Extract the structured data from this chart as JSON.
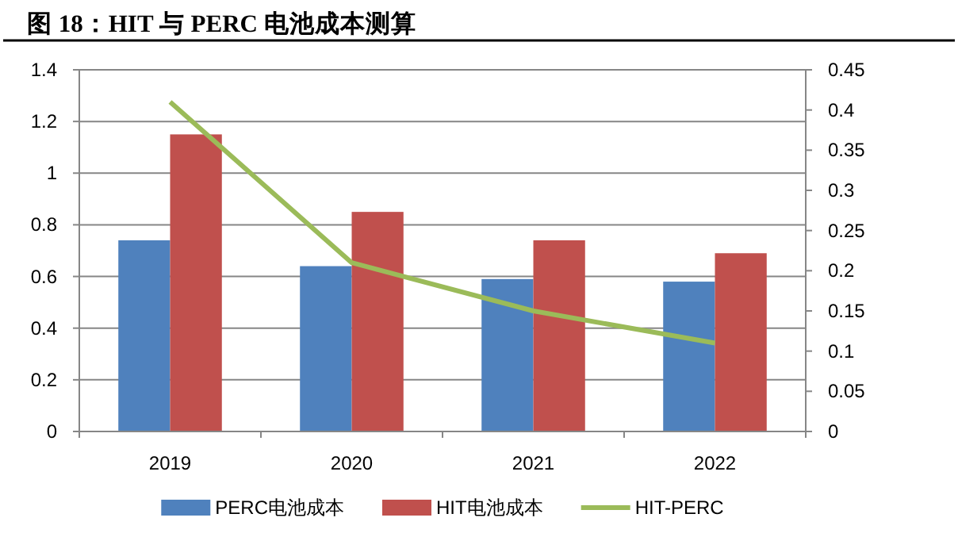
{
  "chart_data": {
    "type": "bar",
    "title": "图 18：HIT 与 PERC 电池成本测算",
    "categories": [
      "2019",
      "2020",
      "2021",
      "2022"
    ],
    "series": [
      {
        "name": "PERC电池成本",
        "color": "#4f81bd",
        "values": [
          0.74,
          0.64,
          0.59,
          0.58
        ]
      },
      {
        "name": "HIT电池成本",
        "color": "#c0504d",
        "values": [
          1.15,
          0.85,
          0.74,
          0.69
        ]
      },
      {
        "name": "HIT-PERC",
        "type": "line",
        "axis": "y2",
        "color": "#9bbb59",
        "values": [
          0.41,
          0.21,
          0.15,
          0.11
        ]
      }
    ],
    "ylim": [
      0,
      1.4
    ],
    "yticks": [
      0,
      0.2,
      0.4,
      0.6,
      0.8,
      1,
      1.2,
      1.4
    ],
    "y2lim": [
      0,
      0.45
    ],
    "y2ticks": [
      0,
      0.05,
      0.1,
      0.15,
      0.2,
      0.25,
      0.3,
      0.35,
      0.4,
      0.45
    ],
    "grid": "y",
    "legend": "bottom"
  }
}
